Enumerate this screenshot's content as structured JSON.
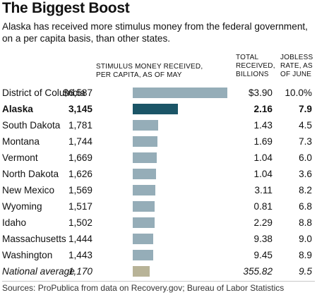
{
  "title": "The Biggest Boost",
  "subtitle": "Alaska has received more stimulus money from the federal government, on a per capita basis, than other states.",
  "headers": {
    "stimulus_line1": "STIMULUS MONEY RECEIVED,",
    "stimulus_line2": "PER CAPITA, AS OF MAY",
    "received_line1": "TOTAL",
    "received_line2": "RECEIVED,",
    "received_line3": "BILLIONS",
    "jobless_line1": "JOBLESS",
    "jobless_line2": "RATE, AS",
    "jobless_line3": "OF JUNE"
  },
  "colors": {
    "bar_default": "#95adb8",
    "bar_highlight": "#1b5567",
    "bar_national": "#b8b397"
  },
  "source": "Sources: ProPublica from data on Recovery.gov; Bureau of Labor Statistics",
  "chart_data": {
    "type": "bar",
    "orientation": "horizontal",
    "categories": [
      "District of Columbia",
      "Alaska",
      "South Dakota",
      "Montana",
      "Vermont",
      "North Dakota",
      "New Mexico",
      "Wyoming",
      "Idaho",
      "Massachusetts",
      "Washington",
      "National average"
    ],
    "values": [
      6587,
      3145,
      1781,
      1744,
      1669,
      1626,
      1569,
      1517,
      1502,
      1444,
      1443,
      1170
    ],
    "value_labels": [
      "$6,587",
      "3,145",
      "1,781",
      "1,744",
      "1,669",
      "1,626",
      "1,569",
      "1,517",
      "1,502",
      "1,444",
      "1,443",
      "1,170"
    ],
    "total_received_billions": [
      "$3.90",
      "2.16",
      "1.43",
      "1.69",
      "1.04",
      "1.04",
      "3.11",
      "0.81",
      "2.29",
      "9.38",
      "9.45",
      "355.82"
    ],
    "jobless_rate_june": [
      "10.0%",
      "7.9",
      "4.5",
      "7.3",
      "6.0",
      "3.6",
      "8.2",
      "6.8",
      "8.8",
      "9.0",
      "8.9",
      "9.5"
    ],
    "highlight": "Alaska",
    "average_row": "National average",
    "xlim": [
      0,
      6587
    ]
  }
}
